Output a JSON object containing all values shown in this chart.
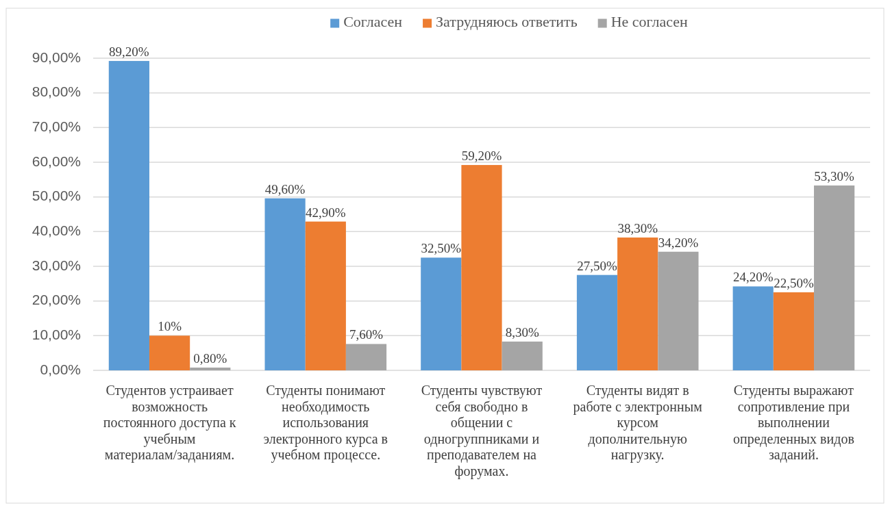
{
  "chart_data": {
    "type": "bar",
    "categories": [
      "Студентов устраивает возможность постоянного доступа к учебным материалам/заданиям.",
      "Студенты понимают необходимость использования электронного курса в учебном процессе.",
      "Студенты чувствуют себя свободно в общении с одногруппниками и преподавателем на форумах.",
      "Студенты видят в работе с электронным курсом дополнительную нагрузку.",
      "Студенты выражают сопротивление при выполнении определенных видов заданий."
    ],
    "series": [
      {
        "name": "Согласен",
        "color": "#5b9bd5",
        "values": [
          89.2,
          49.6,
          32.5,
          27.5,
          24.2
        ],
        "value_labels": [
          "89,20%",
          "49,60%",
          "32,50%",
          "27,50%",
          "24,20%"
        ]
      },
      {
        "name": "Затрудняюсь ответить",
        "color": "#ed7d31",
        "values": [
          10,
          42.9,
          59.2,
          38.3,
          22.5
        ],
        "value_labels": [
          "10%",
          "42,90%",
          "59,20%",
          "38,30%",
          "22,50%"
        ]
      },
      {
        "name": "Не согласен",
        "color": "#a5a5a5",
        "values": [
          0.8,
          7.6,
          8.3,
          34.2,
          53.3
        ],
        "value_labels": [
          "0,80%",
          "7,60%",
          "8,30%",
          "34,20%",
          "53,30%"
        ]
      }
    ],
    "ylim": [
      0,
      90
    ],
    "yticks": [
      {
        "value": 0,
        "label": "0,00%"
      },
      {
        "value": 10,
        "label": "10,00%"
      },
      {
        "value": 20,
        "label": "20,00%"
      },
      {
        "value": 30,
        "label": "30,00%"
      },
      {
        "value": 40,
        "label": "40,00%"
      },
      {
        "value": 50,
        "label": "50,00%"
      },
      {
        "value": 60,
        "label": "60,00%"
      },
      {
        "value": 70,
        "label": "70,00%"
      },
      {
        "value": 80,
        "label": "80,00%"
      },
      {
        "value": 90,
        "label": "90,00%"
      }
    ],
    "grid": "y",
    "legend": "top"
  }
}
